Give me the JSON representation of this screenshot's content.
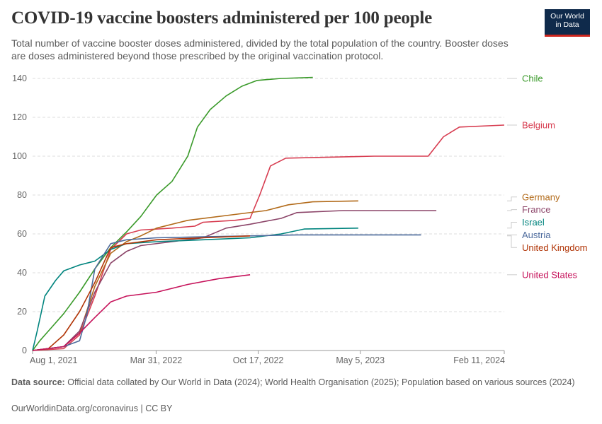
{
  "header": {
    "title": "COVID-19 vaccine boosters administered per 100 people",
    "subtitle": "Total number of vaccine booster doses administered, divided by the total population of the country. Booster doses are doses administered beyond those prescribed by the original vaccination protocol."
  },
  "logo": {
    "line1": "Our World",
    "line2": "in Data",
    "bg_color": "#0f2a4b",
    "accent_color": "#ce261e"
  },
  "footer": {
    "source_label": "Data source:",
    "source_text": "Official data collated by Our World in Data (2024); World Health Organisation (2025); Population based on various sources (2024)",
    "url_text": "OurWorldinData.org/coronavirus | CC BY"
  },
  "chart_data": {
    "type": "line",
    "title": "COVID-19 vaccine boosters administered per 100 people",
    "xlabel": "",
    "ylabel": "",
    "x_ticks": [
      "Aug 1, 2021",
      "Mar 31, 2022",
      "Oct 17, 2022",
      "May 5, 2023",
      "Feb 11, 2024"
    ],
    "y_ticks": [
      "0",
      "20",
      "40",
      "60",
      "80",
      "100",
      "120",
      "140"
    ],
    "ylim": [
      0,
      140
    ],
    "xlim": [
      "2021-08-01",
      "2024-02-11"
    ],
    "grid": "horizontal dashed",
    "legend": "right, labels at line ends",
    "series": [
      {
        "name": "Chile",
        "color": "#3a9a2a",
        "label_value": 140,
        "points": [
          [
            "2021-08-01",
            0
          ],
          [
            "2021-08-15",
            5
          ],
          [
            "2021-09-01",
            10
          ],
          [
            "2021-10-01",
            19
          ],
          [
            "2021-11-01",
            30
          ],
          [
            "2021-12-01",
            42
          ],
          [
            "2022-01-01",
            53
          ],
          [
            "2022-02-01",
            61
          ],
          [
            "2022-03-01",
            69
          ],
          [
            "2022-04-01",
            80
          ],
          [
            "2022-05-01",
            87
          ],
          [
            "2022-06-01",
            100
          ],
          [
            "2022-06-20",
            115
          ],
          [
            "2022-07-15",
            124
          ],
          [
            "2022-08-15",
            131
          ],
          [
            "2022-09-15",
            136
          ],
          [
            "2022-10-15",
            139
          ],
          [
            "2022-12-01",
            140
          ],
          [
            "2023-02-01",
            140.5
          ]
        ]
      },
      {
        "name": "Belgium",
        "color": "#d73c50",
        "label_value": 116,
        "points": [
          [
            "2021-08-01",
            0
          ],
          [
            "2021-10-01",
            1
          ],
          [
            "2021-11-01",
            8
          ],
          [
            "2021-12-01",
            28
          ],
          [
            "2022-01-01",
            52
          ],
          [
            "2022-02-01",
            60
          ],
          [
            "2022-03-01",
            62
          ],
          [
            "2022-05-01",
            63
          ],
          [
            "2022-06-15",
            64
          ],
          [
            "2022-07-01",
            66
          ],
          [
            "2022-09-01",
            67
          ],
          [
            "2022-10-01",
            68
          ],
          [
            "2022-10-20",
            80
          ],
          [
            "2022-11-10",
            95
          ],
          [
            "2022-12-10",
            99
          ],
          [
            "2023-06-01",
            100
          ],
          [
            "2023-09-15",
            100
          ],
          [
            "2023-10-15",
            110
          ],
          [
            "2023-11-15",
            115
          ],
          [
            "2024-02-11",
            116
          ]
        ]
      },
      {
        "name": "Germany",
        "color": "#b26a19",
        "label_value": 77,
        "points": [
          [
            "2021-08-01",
            0
          ],
          [
            "2021-10-01",
            2
          ],
          [
            "2021-11-01",
            9
          ],
          [
            "2021-12-01",
            33
          ],
          [
            "2022-01-01",
            50
          ],
          [
            "2022-02-01",
            56
          ],
          [
            "2022-03-01",
            59
          ],
          [
            "2022-04-01",
            63
          ],
          [
            "2022-06-01",
            67
          ],
          [
            "2022-09-01",
            70
          ],
          [
            "2022-11-01",
            72
          ],
          [
            "2022-12-15",
            75
          ],
          [
            "2023-02-01",
            76.5
          ],
          [
            "2023-05-01",
            77
          ]
        ]
      },
      {
        "name": "France",
        "color": "#8c4569",
        "label_value": 72,
        "points": [
          [
            "2021-08-01",
            0
          ],
          [
            "2021-10-01",
            2
          ],
          [
            "2021-11-01",
            10
          ],
          [
            "2021-12-01",
            30
          ],
          [
            "2022-01-01",
            45
          ],
          [
            "2022-02-01",
            51
          ],
          [
            "2022-03-01",
            54
          ],
          [
            "2022-05-01",
            56
          ],
          [
            "2022-07-01",
            58
          ],
          [
            "2022-08-15",
            63
          ],
          [
            "2022-10-01",
            65
          ],
          [
            "2022-12-01",
            68
          ],
          [
            "2023-01-01",
            71
          ],
          [
            "2023-04-01",
            72
          ],
          [
            "2023-10-01",
            72
          ]
        ]
      },
      {
        "name": "Israel",
        "color": "#00847e",
        "label_value": 63,
        "points": [
          [
            "2021-08-01",
            0
          ],
          [
            "2021-08-10",
            10
          ],
          [
            "2021-08-25",
            28
          ],
          [
            "2021-09-15",
            36
          ],
          [
            "2021-10-01",
            41
          ],
          [
            "2021-11-01",
            44
          ],
          [
            "2021-12-01",
            46
          ],
          [
            "2022-01-01",
            52
          ],
          [
            "2022-02-01",
            55
          ],
          [
            "2022-04-01",
            56
          ],
          [
            "2022-07-01",
            57
          ],
          [
            "2022-10-01",
            58
          ],
          [
            "2022-12-01",
            60
          ],
          [
            "2023-01-15",
            62.5
          ],
          [
            "2023-05-01",
            63
          ]
        ]
      },
      {
        "name": "Austria",
        "color": "#4c6a9c",
        "label_value": 59.5,
        "points": [
          [
            "2021-08-01",
            0
          ],
          [
            "2021-10-01",
            2
          ],
          [
            "2021-11-01",
            5
          ],
          [
            "2021-11-15",
            18
          ],
          [
            "2021-12-01",
            42
          ],
          [
            "2022-01-01",
            55
          ],
          [
            "2022-02-01",
            57
          ],
          [
            "2022-04-01",
            58
          ],
          [
            "2022-07-01",
            58.5
          ],
          [
            "2022-10-01",
            59
          ],
          [
            "2023-01-01",
            59.5
          ],
          [
            "2023-09-01",
            59.5
          ]
        ]
      },
      {
        "name": "United Kingdom",
        "color": "#b13507",
        "label_value": 59,
        "points": [
          [
            "2021-08-01",
            0
          ],
          [
            "2021-09-01",
            1
          ],
          [
            "2021-10-01",
            8
          ],
          [
            "2021-11-01",
            20
          ],
          [
            "2021-12-01",
            35
          ],
          [
            "2022-01-01",
            53
          ],
          [
            "2022-02-01",
            55
          ],
          [
            "2022-04-01",
            57
          ],
          [
            "2022-07-01",
            58
          ],
          [
            "2022-10-01",
            59
          ]
        ]
      },
      {
        "name": "United States",
        "color": "#c6135b",
        "label_value": 39,
        "points": [
          [
            "2021-08-01",
            0
          ],
          [
            "2021-10-01",
            2
          ],
          [
            "2021-11-01",
            9
          ],
          [
            "2021-12-01",
            17
          ],
          [
            "2022-01-01",
            25
          ],
          [
            "2022-02-01",
            28
          ],
          [
            "2022-04-01",
            30
          ],
          [
            "2022-06-01",
            34
          ],
          [
            "2022-08-01",
            37
          ],
          [
            "2022-10-01",
            39
          ]
        ]
      }
    ],
    "label_positions": {
      "Chile": 140,
      "Belgium": 116,
      "Germany": 79,
      "France": 72.5,
      "Israel": 66,
      "Austria": 59.5,
      "United Kingdom": 53,
      "United States": 39
    }
  }
}
